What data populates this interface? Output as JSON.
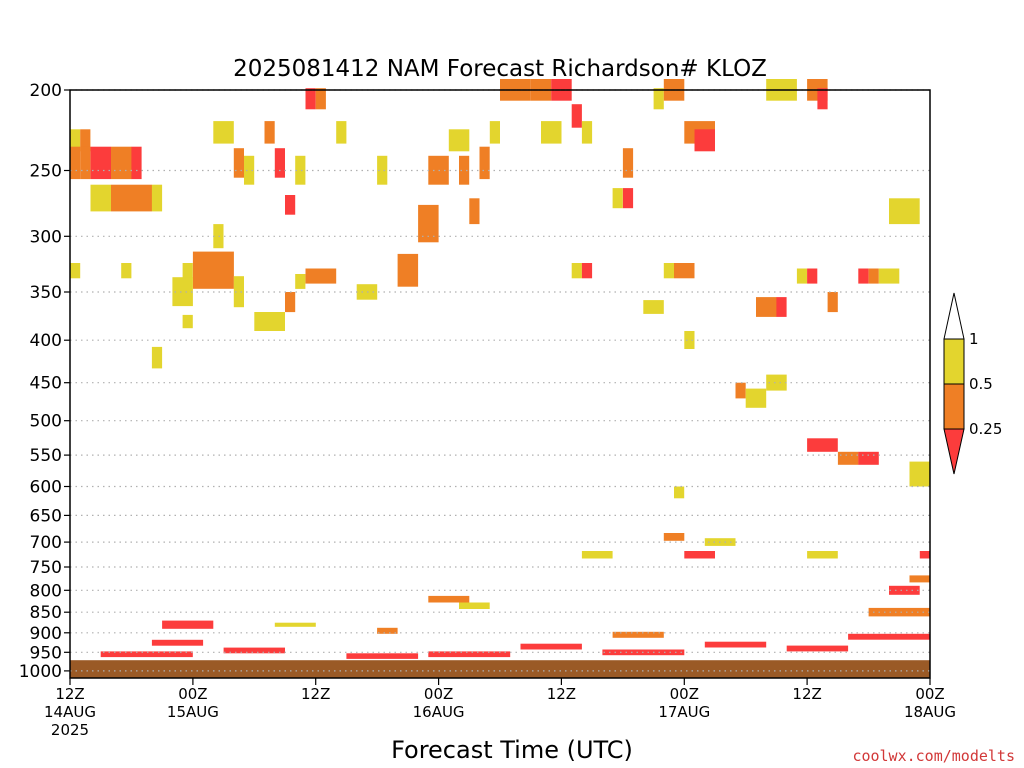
{
  "chart_data": {
    "type": "heatmap",
    "title": "2025081412 NAM Forecast Richardson# KLOZ",
    "xlabel": "Forecast Time (UTC)",
    "ylabel": "",
    "credit": "coolwx.com/modelts",
    "x_unit": "forecast hours from 2025-08-14 12Z",
    "xlim": [
      0,
      84
    ],
    "ylim": [
      1020,
      200
    ],
    "y_scale": "log",
    "grid": "dotted horizontal",
    "x_ticks": [
      {
        "h": 0,
        "line1": "12Z",
        "line2": "14AUG",
        "line3": "2025"
      },
      {
        "h": 12,
        "line1": "00Z",
        "line2": "15AUG",
        "line3": ""
      },
      {
        "h": 24,
        "line1": "12Z",
        "line2": "",
        "line3": ""
      },
      {
        "h": 36,
        "line1": "00Z",
        "line2": "16AUG",
        "line3": ""
      },
      {
        "h": 48,
        "line1": "12Z",
        "line2": "",
        "line3": ""
      },
      {
        "h": 60,
        "line1": "00Z",
        "line2": "17AUG",
        "line3": ""
      },
      {
        "h": 72,
        "line1": "12Z",
        "line2": "",
        "line3": ""
      },
      {
        "h": 84,
        "line1": "00Z",
        "line2": "18AUG",
        "line3": ""
      }
    ],
    "y_ticks": [
      200,
      250,
      300,
      350,
      400,
      450,
      500,
      550,
      600,
      650,
      700,
      750,
      800,
      850,
      900,
      950,
      1000
    ],
    "ground_level_hPa": 971,
    "colors": {
      "y": "#e3d52e",
      "o": "#ef7f25",
      "r": "#fc3c3c",
      "ground": "#9a5a26",
      "white": "#ffffff"
    },
    "legend": {
      "labels": [
        "1",
        "0.5",
        "0.25"
      ]
    },
    "cells": [
      {
        "h": 0,
        "p": 230,
        "dh": 1,
        "dp": 14,
        "c": "y"
      },
      {
        "h": 0,
        "p": 245,
        "dh": 1,
        "dp": 22,
        "c": "o"
      },
      {
        "h": 1,
        "p": 230,
        "dh": 1,
        "dp": 14,
        "c": "o"
      },
      {
        "h": 1,
        "p": 245,
        "dh": 1,
        "dp": 22,
        "c": "o"
      },
      {
        "h": 2,
        "p": 245,
        "dh": 2,
        "dp": 22,
        "c": "r"
      },
      {
        "h": 4,
        "p": 245,
        "dh": 2,
        "dp": 22,
        "c": "o"
      },
      {
        "h": 4,
        "p": 270,
        "dh": 4,
        "dp": 20,
        "c": "o"
      },
      {
        "h": 2,
        "p": 270,
        "dh": 2,
        "dp": 20,
        "c": "y"
      },
      {
        "h": 6,
        "p": 245,
        "dh": 1,
        "dp": 22,
        "c": "r"
      },
      {
        "h": 8,
        "p": 270,
        "dh": 1,
        "dp": 20,
        "c": "y"
      },
      {
        "h": 0,
        "p": 330,
        "dh": 1,
        "dp": 14,
        "c": "y"
      },
      {
        "h": 5,
        "p": 330,
        "dh": 1,
        "dp": 14,
        "c": "y"
      },
      {
        "h": 8,
        "p": 420,
        "dh": 1,
        "dp": 25,
        "c": "y"
      },
      {
        "h": 11,
        "p": 330,
        "dh": 1,
        "dp": 14,
        "c": "y"
      },
      {
        "h": 12,
        "p": 330,
        "dh": 4,
        "dp": 34,
        "c": "o"
      },
      {
        "h": 10,
        "p": 350,
        "dh": 2,
        "dp": 28,
        "c": "y"
      },
      {
        "h": 11,
        "p": 380,
        "dh": 1,
        "dp": 14,
        "c": "y"
      },
      {
        "h": 14,
        "p": 300,
        "dh": 1,
        "dp": 20,
        "c": "y"
      },
      {
        "h": 16,
        "p": 350,
        "dh": 1,
        "dp": 30,
        "c": "y"
      },
      {
        "h": 18,
        "p": 380,
        "dh": 3,
        "dp": 20,
        "c": "y"
      },
      {
        "h": 21,
        "p": 360,
        "dh": 1,
        "dp": 20,
        "c": "o"
      },
      {
        "h": 22,
        "p": 340,
        "dh": 1,
        "dp": 14,
        "c": "y"
      },
      {
        "h": 23,
        "p": 335,
        "dh": 3,
        "dp": 14,
        "c": "o"
      },
      {
        "h": 14,
        "p": 225,
        "dh": 2,
        "dp": 14,
        "c": "y"
      },
      {
        "h": 16,
        "p": 245,
        "dh": 1,
        "dp": 20,
        "c": "o"
      },
      {
        "h": 17,
        "p": 250,
        "dh": 1,
        "dp": 20,
        "c": "y"
      },
      {
        "h": 19,
        "p": 225,
        "dh": 1,
        "dp": 14,
        "c": "o"
      },
      {
        "h": 20,
        "p": 245,
        "dh": 1,
        "dp": 20,
        "c": "r"
      },
      {
        "h": 21,
        "p": 275,
        "dh": 1,
        "dp": 15,
        "c": "r"
      },
      {
        "h": 22,
        "p": 250,
        "dh": 1,
        "dp": 20,
        "c": "y"
      },
      {
        "h": 23,
        "p": 205,
        "dh": 1,
        "dp": 12,
        "c": "r"
      },
      {
        "h": 24,
        "p": 205,
        "dh": 1,
        "dp": 12,
        "c": "o"
      },
      {
        "h": 26,
        "p": 225,
        "dh": 1,
        "dp": 14,
        "c": "y"
      },
      {
        "h": 28,
        "p": 350,
        "dh": 2,
        "dp": 15,
        "c": "y"
      },
      {
        "h": 30,
        "p": 250,
        "dh": 1,
        "dp": 20,
        "c": "y"
      },
      {
        "h": 32,
        "p": 330,
        "dh": 2,
        "dp": 30,
        "c": "o"
      },
      {
        "h": 34,
        "p": 290,
        "dh": 2,
        "dp": 30,
        "c": "o"
      },
      {
        "h": 35,
        "p": 250,
        "dh": 2,
        "dp": 20,
        "c": "o"
      },
      {
        "h": 37,
        "p": 230,
        "dh": 2,
        "dp": 14,
        "c": "y"
      },
      {
        "h": 38,
        "p": 250,
        "dh": 1,
        "dp": 20,
        "c": "o"
      },
      {
        "h": 39,
        "p": 280,
        "dh": 1,
        "dp": 20,
        "c": "o"
      },
      {
        "h": 40,
        "p": 245,
        "dh": 1,
        "dp": 22,
        "c": "o"
      },
      {
        "h": 41,
        "p": 225,
        "dh": 1,
        "dp": 14,
        "c": "y"
      },
      {
        "h": 42,
        "p": 200,
        "dh": 3,
        "dp": 12,
        "c": "o"
      },
      {
        "h": 45,
        "p": 200,
        "dh": 2,
        "dp": 12,
        "c": "o"
      },
      {
        "h": 47,
        "p": 200,
        "dh": 2,
        "dp": 12,
        "c": "r"
      },
      {
        "h": 49,
        "p": 215,
        "dh": 1,
        "dp": 14,
        "c": "r"
      },
      {
        "h": 46,
        "p": 225,
        "dh": 2,
        "dp": 14,
        "c": "y"
      },
      {
        "h": 50,
        "p": 225,
        "dh": 1,
        "dp": 14,
        "c": "y"
      },
      {
        "h": 49,
        "p": 330,
        "dh": 1,
        "dp": 14,
        "c": "y"
      },
      {
        "h": 50,
        "p": 330,
        "dh": 1,
        "dp": 14,
        "c": "r"
      },
      {
        "h": 53,
        "p": 270,
        "dh": 1,
        "dp": 15,
        "c": "y"
      },
      {
        "h": 54,
        "p": 270,
        "dh": 1,
        "dp": 15,
        "c": "r"
      },
      {
        "h": 54,
        "p": 245,
        "dh": 1,
        "dp": 20,
        "c": "o"
      },
      {
        "h": 57,
        "p": 205,
        "dh": 1,
        "dp": 12,
        "c": "y"
      },
      {
        "h": 58,
        "p": 200,
        "dh": 2,
        "dp": 12,
        "c": "o"
      },
      {
        "h": 60,
        "p": 225,
        "dh": 3,
        "dp": 14,
        "c": "o"
      },
      {
        "h": 61,
        "p": 230,
        "dh": 2,
        "dp": 14,
        "c": "r"
      },
      {
        "h": 58,
        "p": 330,
        "dh": 1,
        "dp": 14,
        "c": "y"
      },
      {
        "h": 59,
        "p": 330,
        "dh": 2,
        "dp": 14,
        "c": "o"
      },
      {
        "h": 56,
        "p": 365,
        "dh": 2,
        "dp": 14,
        "c": "y"
      },
      {
        "h": 60,
        "p": 400,
        "dh": 1,
        "dp": 20,
        "c": "y"
      },
      {
        "h": 67,
        "p": 365,
        "dh": 2,
        "dp": 20,
        "c": "o"
      },
      {
        "h": 69,
        "p": 365,
        "dh": 1,
        "dp": 20,
        "c": "r"
      },
      {
        "h": 68,
        "p": 200,
        "dh": 3,
        "dp": 12,
        "c": "y"
      },
      {
        "h": 72,
        "p": 200,
        "dh": 2,
        "dp": 12,
        "c": "o"
      },
      {
        "h": 73,
        "p": 205,
        "dh": 1,
        "dp": 12,
        "c": "r"
      },
      {
        "h": 71,
        "p": 335,
        "dh": 1,
        "dp": 14,
        "c": "y"
      },
      {
        "h": 72,
        "p": 335,
        "dh": 1,
        "dp": 14,
        "c": "r"
      },
      {
        "h": 74,
        "p": 360,
        "dh": 1,
        "dp": 20,
        "c": "o"
      },
      {
        "h": 77,
        "p": 335,
        "dh": 1,
        "dp": 14,
        "c": "r"
      },
      {
        "h": 78,
        "p": 335,
        "dh": 1,
        "dp": 14,
        "c": "o"
      },
      {
        "h": 79,
        "p": 335,
        "dh": 2,
        "dp": 14,
        "c": "y"
      },
      {
        "h": 80,
        "p": 280,
        "dh": 3,
        "dp": 20,
        "c": "y"
      },
      {
        "h": 65,
        "p": 460,
        "dh": 1,
        "dp": 20,
        "c": "o"
      },
      {
        "h": 66,
        "p": 470,
        "dh": 2,
        "dp": 25,
        "c": "y"
      },
      {
        "h": 68,
        "p": 450,
        "dh": 2,
        "dp": 20,
        "c": "y"
      },
      {
        "h": 72,
        "p": 535,
        "dh": 3,
        "dp": 20,
        "c": "r"
      },
      {
        "h": 75,
        "p": 555,
        "dh": 2,
        "dp": 20,
        "c": "o"
      },
      {
        "h": 77,
        "p": 555,
        "dh": 2,
        "dp": 20,
        "c": "r"
      },
      {
        "h": 82,
        "p": 580,
        "dh": 2,
        "dp": 40,
        "c": "y"
      },
      {
        "h": 59,
        "p": 610,
        "dh": 1,
        "dp": 20,
        "c": "y"
      },
      {
        "h": 58,
        "p": 690,
        "dh": 2,
        "dp": 15,
        "c": "o"
      },
      {
        "h": 60,
        "p": 725,
        "dh": 3,
        "dp": 15,
        "c": "r"
      },
      {
        "h": 62,
        "p": 700,
        "dh": 3,
        "dp": 15,
        "c": "y"
      },
      {
        "h": 50,
        "p": 725,
        "dh": 3,
        "dp": 15,
        "c": "y"
      },
      {
        "h": 72,
        "p": 725,
        "dh": 3,
        "dp": 15,
        "c": "y"
      },
      {
        "h": 82,
        "p": 775,
        "dh": 2,
        "dp": 15,
        "c": "o"
      },
      {
        "h": 83,
        "p": 725,
        "dh": 1,
        "dp": 15,
        "c": "r"
      },
      {
        "h": 3,
        "p": 955,
        "dh": 9,
        "dp": 15,
        "c": "r"
      },
      {
        "h": 8,
        "p": 925,
        "dh": 5,
        "dp": 15,
        "c": "r"
      },
      {
        "h": 9,
        "p": 880,
        "dh": 5,
        "dp": 20,
        "c": "r"
      },
      {
        "h": 15,
        "p": 945,
        "dh": 6,
        "dp": 15,
        "c": "r"
      },
      {
        "h": 27,
        "p": 960,
        "dh": 7,
        "dp": 15,
        "c": "r"
      },
      {
        "h": 35,
        "p": 955,
        "dh": 8,
        "dp": 15,
        "c": "r"
      },
      {
        "h": 44,
        "p": 935,
        "dh": 6,
        "dp": 15,
        "c": "r"
      },
      {
        "h": 52,
        "p": 950,
        "dh": 8,
        "dp": 15,
        "c": "r"
      },
      {
        "h": 62,
        "p": 930,
        "dh": 6,
        "dp": 15,
        "c": "r"
      },
      {
        "h": 70,
        "p": 940,
        "dh": 6,
        "dp": 15,
        "c": "r"
      },
      {
        "h": 76,
        "p": 910,
        "dh": 8,
        "dp": 15,
        "c": "r"
      },
      {
        "h": 78,
        "p": 850,
        "dh": 6,
        "dp": 20,
        "c": "o"
      },
      {
        "h": 80,
        "p": 800,
        "dh": 3,
        "dp": 20,
        "c": "r"
      },
      {
        "h": 30,
        "p": 895,
        "dh": 2,
        "dp": 15,
        "c": "o"
      },
      {
        "h": 35,
        "p": 820,
        "dh": 4,
        "dp": 15,
        "c": "o"
      },
      {
        "h": 38,
        "p": 835,
        "dh": 3,
        "dp": 15,
        "c": "y"
      },
      {
        "h": 53,
        "p": 905,
        "dh": 5,
        "dp": 15,
        "c": "o"
      },
      {
        "h": 20,
        "p": 880,
        "dh": 4,
        "dp": 10,
        "c": "y"
      }
    ]
  }
}
